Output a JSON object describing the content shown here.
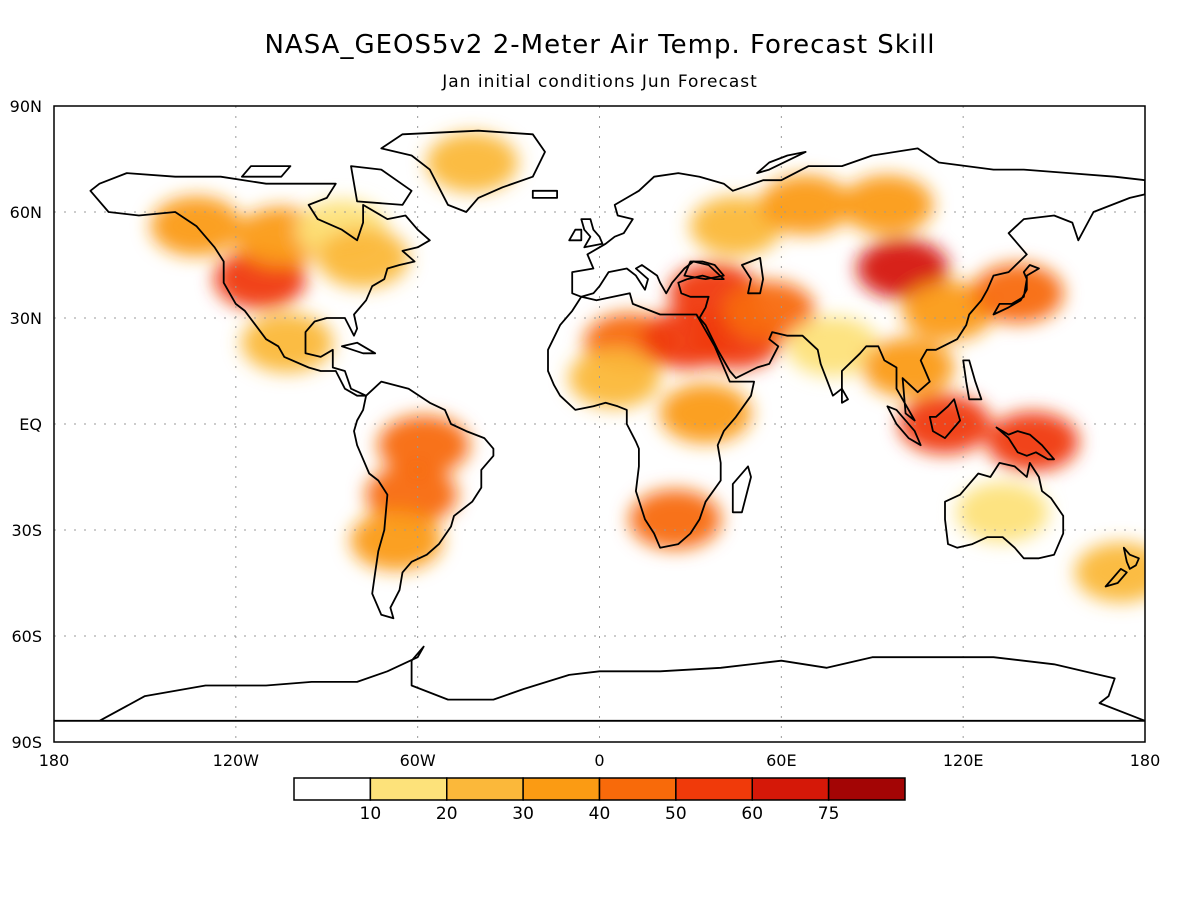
{
  "chart_data": {
    "type": "heatmap",
    "map_projection": "cylindrical equidistant (latitude-longitude)",
    "title": "NASA_GEOS5v2 2-Meter Air Temp. Forecast Skill",
    "subtitle": "Jan initial conditions  Jun Forecast",
    "x_axis": {
      "range": [
        -180,
        180
      ],
      "ticks": [
        {
          "value": -180,
          "label": "180"
        },
        {
          "value": -120,
          "label": "120W"
        },
        {
          "value": -60,
          "label": "60W"
        },
        {
          "value": 0,
          "label": "0"
        },
        {
          "value": 60,
          "label": "60E"
        },
        {
          "value": 120,
          "label": "120E"
        },
        {
          "value": 180,
          "label": "180"
        }
      ]
    },
    "y_axis": {
      "range": [
        -90,
        90
      ],
      "ticks": [
        {
          "value": 90,
          "label": "90N"
        },
        {
          "value": 60,
          "label": "60N"
        },
        {
          "value": 30,
          "label": "30N"
        },
        {
          "value": 0,
          "label": "EQ"
        },
        {
          "value": -30,
          "label": "30S"
        },
        {
          "value": -60,
          "label": "60S"
        },
        {
          "value": -90,
          "label": "90S"
        }
      ]
    },
    "grid": true,
    "colorbar": {
      "placement": "bottom",
      "bins": [
        {
          "min": null,
          "max": 10,
          "color": "#ffffff"
        },
        {
          "min": 10,
          "max": 20,
          "color": "#fde27a"
        },
        {
          "min": 20,
          "max": 30,
          "color": "#fbb83a"
        },
        {
          "min": 30,
          "max": 40,
          "color": "#fb9b13"
        },
        {
          "min": 40,
          "max": 50,
          "color": "#f86a0a"
        },
        {
          "min": 50,
          "max": 60,
          "color": "#f03a0a"
        },
        {
          "min": 60,
          "max": 75,
          "color": "#d51808"
        },
        {
          "min": 75,
          "max": null,
          "color": "#a30505"
        }
      ],
      "tick_labels": [
        "10",
        "20",
        "30",
        "40",
        "50",
        "60",
        "75"
      ]
    },
    "skill_regions": [
      {
        "name": "northwestern-north-america",
        "lon": -133,
        "lat": 56,
        "value": 30
      },
      {
        "name": "western-united-states",
        "lon": -112,
        "lat": 41,
        "value": 50
      },
      {
        "name": "canadian-prairies",
        "lon": -105,
        "lat": 53,
        "value": 30
      },
      {
        "name": "hudson-bay-region",
        "lon": -85,
        "lat": 55,
        "value": 15
      },
      {
        "name": "great-lakes-northeast",
        "lon": -78,
        "lat": 47,
        "value": 25
      },
      {
        "name": "greenland",
        "lon": -42,
        "lat": 74,
        "value": 20
      },
      {
        "name": "mexico",
        "lon": -103,
        "lat": 23,
        "value": 20
      },
      {
        "name": "amazonia",
        "lon": -58,
        "lat": -6,
        "value": 40
      },
      {
        "name": "bolivia-paraguay",
        "lon": -62,
        "lat": -20,
        "value": 40
      },
      {
        "name": "argentina",
        "lon": -67,
        "lat": -33,
        "value": 30
      },
      {
        "name": "sahara",
        "lon": 10,
        "lat": 23,
        "value": 45
      },
      {
        "name": "egypt-sudan",
        "lon": 29,
        "lat": 24,
        "value": 55
      },
      {
        "name": "sahel",
        "lon": 5,
        "lat": 13,
        "value": 25
      },
      {
        "name": "east-africa",
        "lon": 35,
        "lat": 3,
        "value": 35
      },
      {
        "name": "southern-africa",
        "lon": 25,
        "lat": -27,
        "value": 45
      },
      {
        "name": "arabian-peninsula",
        "lon": 45,
        "lat": 24,
        "value": 50
      },
      {
        "name": "turkey-middle-east",
        "lon": 38,
        "lat": 37,
        "value": 50
      },
      {
        "name": "iran",
        "lon": 56,
        "lat": 32,
        "value": 40
      },
      {
        "name": "western-russia",
        "lon": 45,
        "lat": 56,
        "value": 25
      },
      {
        "name": "western-siberia",
        "lon": 68,
        "lat": 62,
        "value": 35
      },
      {
        "name": "central-siberia",
        "lon": 95,
        "lat": 62,
        "value": 30
      },
      {
        "name": "mongolia-northern-china",
        "lon": 100,
        "lat": 44,
        "value": 60
      },
      {
        "name": "eastern-china",
        "lon": 115,
        "lat": 32,
        "value": 35
      },
      {
        "name": "japan",
        "lon": 138,
        "lat": 37,
        "value": 45
      },
      {
        "name": "india",
        "lon": 77,
        "lat": 22,
        "value": 15
      },
      {
        "name": "mainland-southeast-asia",
        "lon": 102,
        "lat": 16,
        "value": 30
      },
      {
        "name": "borneo",
        "lon": 114,
        "lat": 0,
        "value": 50
      },
      {
        "name": "new-guinea",
        "lon": 143,
        "lat": -5,
        "value": 50
      },
      {
        "name": "australia",
        "lon": 133,
        "lat": -25,
        "value": 15
      },
      {
        "name": "new-zealand",
        "lon": 172,
        "lat": -42,
        "value": 20
      }
    ]
  }
}
